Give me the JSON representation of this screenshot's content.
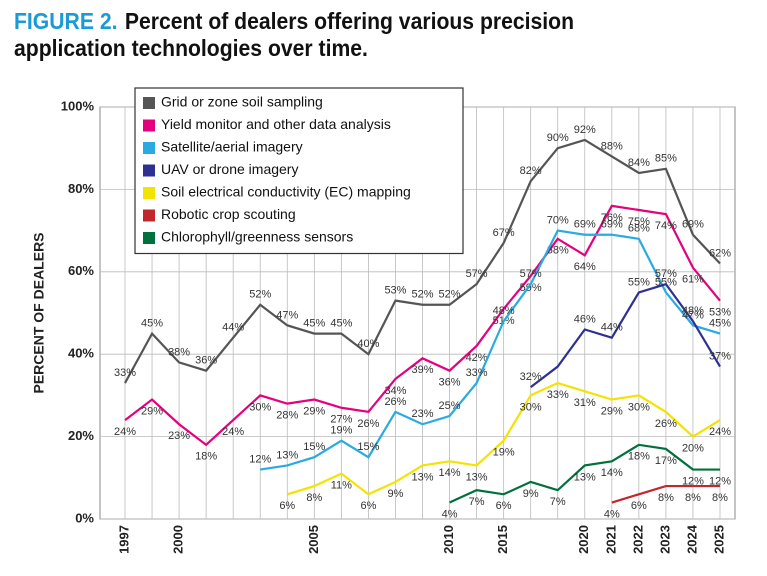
{
  "chart_data": {
    "type": "line",
    "figure_label": "FIGURE 2.",
    "title": "Percent of dealers offering various precision application technologies over time.",
    "y_label": "PERCENT OF DEALERS",
    "categories": [
      "1997",
      null,
      "2000",
      null,
      null,
      null,
      null,
      "2005",
      null,
      null,
      null,
      null,
      "2010",
      null,
      "2015",
      null,
      null,
      "2020",
      "2021",
      "2022",
      "2023",
      "2024",
      "2025"
    ],
    "ylim": [
      0,
      100
    ],
    "yticks": [
      {
        "value": 0,
        "label": "0%"
      },
      {
        "value": 20,
        "label": "20%"
      },
      {
        "value": 40,
        "label": "40%"
      },
      {
        "value": 60,
        "label": "60%"
      },
      {
        "value": 80,
        "label": "80%"
      },
      {
        "value": 100,
        "label": "100%"
      }
    ],
    "grid": true,
    "legend": "upper left",
    "series": [
      {
        "name": "Grid or zone soil sampling",
        "color": "#555555",
        "values": [
          33,
          45,
          38,
          36,
          44,
          52,
          47,
          45,
          45,
          40,
          53,
          52,
          52,
          57,
          67,
          82,
          90,
          92,
          88,
          84,
          85,
          69,
          62
        ],
        "value_labels": [
          "33%",
          "45%",
          "38%",
          "36%",
          "44%",
          "52%",
          "47%",
          "45%",
          "45%",
          "40%",
          "53%",
          "52%",
          "52%",
          "57%",
          "67%",
          "82%",
          "90%",
          "92%",
          "88%",
          "84%",
          "85%",
          "69%",
          "62%"
        ]
      },
      {
        "name": "Yield monitor and other data analysis",
        "color": "#e5007e",
        "values": [
          24,
          29,
          23,
          18,
          24,
          30,
          28,
          29,
          27,
          26,
          34,
          39,
          36,
          42,
          51,
          59,
          68,
          64,
          76,
          75,
          74,
          61,
          53
        ],
        "value_labels": [
          "24%",
          "29%",
          "23%",
          "18%",
          "24%",
          "30%",
          "28%",
          "29%",
          "27%",
          "26%",
          "34%",
          "39%",
          "36%",
          "42%",
          "51%",
          "59%",
          "68%",
          "64%",
          "76%",
          "75%",
          "74%",
          "61%",
          "53%"
        ]
      },
      {
        "name": "Satellite/aerial imagery",
        "color": "#29abe2",
        "values": [
          null,
          null,
          null,
          null,
          null,
          12,
          13,
          15,
          19,
          15,
          26,
          23,
          25,
          33,
          48,
          57,
          70,
          69,
          69,
          68,
          55,
          47,
          45
        ],
        "value_labels": [
          null,
          null,
          null,
          null,
          null,
          "12%",
          "13%",
          "15%",
          "19%",
          "15%",
          "26%",
          "23%",
          "25%",
          "33%",
          "48%",
          "57%",
          "70%",
          "69%",
          "69%",
          "68%",
          "55%",
          "47%",
          "45%"
        ]
      },
      {
        "name": "UAV or drone imagery",
        "color": "#2e3192",
        "values": [
          null,
          null,
          null,
          null,
          null,
          null,
          null,
          null,
          null,
          null,
          null,
          null,
          null,
          null,
          null,
          32,
          37,
          46,
          44,
          55,
          57,
          48,
          37
        ],
        "value_labels": [
          null,
          null,
          null,
          null,
          null,
          null,
          null,
          null,
          null,
          null,
          null,
          null,
          null,
          null,
          null,
          "32%",
          null,
          "46%",
          "44%",
          "55%",
          "57%",
          "48%",
          "37%"
        ]
      },
      {
        "name": "Soil electrical conductivity (EC) mapping",
        "color": "#f2e400",
        "values": [
          null,
          null,
          null,
          null,
          null,
          null,
          6,
          8,
          11,
          6,
          9,
          13,
          14,
          13,
          19,
          30,
          33,
          31,
          29,
          30,
          26,
          20,
          24
        ],
        "value_labels": [
          null,
          null,
          null,
          null,
          null,
          null,
          "6%",
          "8%",
          "11%",
          "6%",
          "9%",
          "13%",
          "14%",
          "13%",
          "19%",
          "30%",
          "33%",
          "31%",
          "29%",
          "30%",
          "26%",
          "20%",
          "24%"
        ]
      },
      {
        "name": "Robotic crop scouting",
        "color": "#c1272d",
        "values": [
          null,
          null,
          null,
          null,
          null,
          null,
          null,
          null,
          null,
          null,
          null,
          null,
          null,
          null,
          null,
          null,
          null,
          null,
          4,
          6,
          8,
          8,
          8
        ],
        "value_labels": [
          null,
          null,
          null,
          null,
          null,
          null,
          null,
          null,
          null,
          null,
          null,
          null,
          null,
          null,
          null,
          null,
          null,
          null,
          "4%",
          "6%",
          "8%",
          "8%",
          "8%"
        ]
      },
      {
        "name": "Chlorophyll/greenness sensors",
        "color": "#00703c",
        "values": [
          null,
          null,
          null,
          null,
          null,
          null,
          null,
          null,
          null,
          null,
          null,
          null,
          4,
          7,
          6,
          9,
          7,
          13,
          14,
          18,
          17,
          12,
          12
        ],
        "value_labels": [
          null,
          null,
          null,
          null,
          null,
          null,
          null,
          null,
          null,
          null,
          null,
          null,
          "4%",
          "7%",
          "6%",
          "9%",
          "7%",
          "13%",
          "14%",
          "18%",
          "17%",
          "12%",
          "12%"
        ]
      }
    ]
  }
}
